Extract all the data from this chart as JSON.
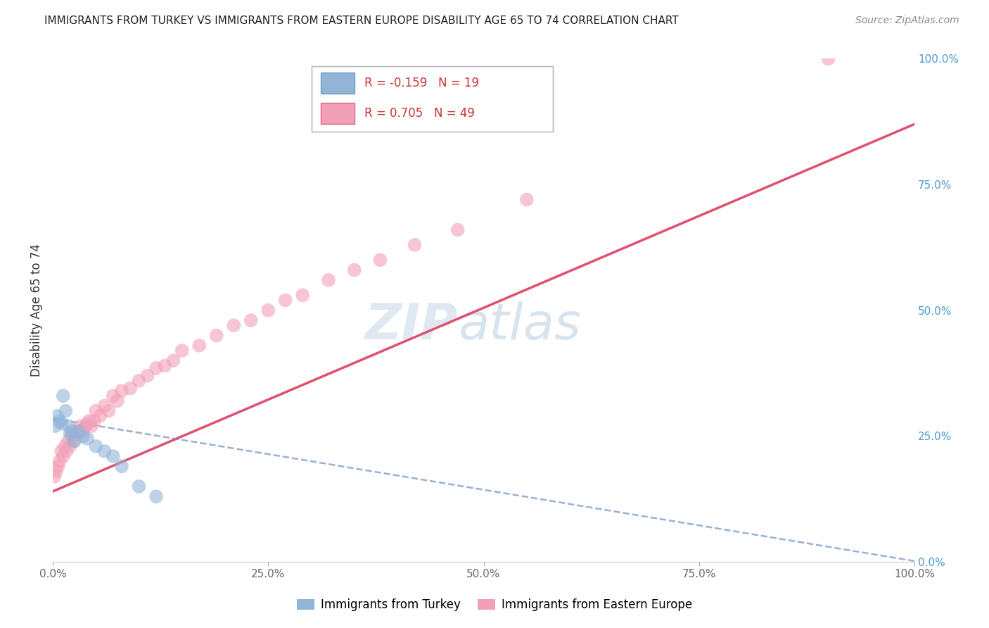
{
  "title": "IMMIGRANTS FROM TURKEY VS IMMIGRANTS FROM EASTERN EUROPE DISABILITY AGE 65 TO 74 CORRELATION CHART",
  "source": "Source: ZipAtlas.com",
  "ylabel": "Disability Age 65 to 74",
  "legend_turkey": "R = -0.159   N = 19",
  "legend_eastern": "R = 0.705   N = 49",
  "turkey_color": "#92b4d7",
  "eastern_color": "#f2a0b8",
  "turkey_line_color": "#7090c0",
  "eastern_line_color": "#e05070",
  "watermark_text": "ZIPatlas",
  "turkey_scatter_x": [
    0.3,
    0.5,
    0.8,
    1.0,
    1.2,
    1.5,
    1.8,
    2.0,
    2.2,
    2.5,
    3.0,
    3.5,
    4.0,
    5.0,
    6.0,
    7.0,
    8.0,
    10.0,
    12.0
  ],
  "turkey_scatter_y": [
    27.0,
    29.0,
    28.0,
    27.5,
    33.0,
    30.0,
    27.0,
    25.5,
    26.0,
    24.0,
    26.0,
    25.0,
    24.5,
    23.0,
    22.0,
    21.0,
    19.0,
    15.0,
    13.0
  ],
  "eastern_scatter_x": [
    0.2,
    0.4,
    0.6,
    0.8,
    1.0,
    1.2,
    1.4,
    1.6,
    1.8,
    2.0,
    2.2,
    2.5,
    2.8,
    3.0,
    3.2,
    3.5,
    3.8,
    4.0,
    4.2,
    4.5,
    4.8,
    5.0,
    5.5,
    6.0,
    6.5,
    7.0,
    7.5,
    8.0,
    9.0,
    10.0,
    11.0,
    12.0,
    13.0,
    14.0,
    15.0,
    17.0,
    19.0,
    21.0,
    23.0,
    25.0,
    27.0,
    29.0,
    32.0,
    35.0,
    38.0,
    42.0,
    47.0,
    55.0,
    90.0
  ],
  "eastern_scatter_y": [
    17.0,
    18.0,
    19.0,
    20.0,
    22.0,
    21.0,
    23.0,
    22.0,
    24.0,
    23.0,
    25.0,
    24.0,
    25.5,
    26.0,
    27.0,
    26.0,
    27.0,
    27.5,
    28.0,
    27.0,
    28.0,
    30.0,
    29.0,
    31.0,
    30.0,
    33.0,
    32.0,
    34.0,
    34.5,
    36.0,
    37.0,
    38.5,
    39.0,
    40.0,
    42.0,
    43.0,
    45.0,
    47.0,
    48.0,
    50.0,
    52.0,
    53.0,
    56.0,
    58.0,
    60.0,
    63.0,
    66.0,
    72.0,
    100.0
  ],
  "xlim": [
    0,
    100
  ],
  "ylim": [
    0,
    100
  ],
  "bg_color": "#ffffff",
  "grid_color": "#dddddd",
  "eastern_line_x0": 0,
  "eastern_line_y0": 14.0,
  "eastern_line_x1": 100,
  "eastern_line_y1": 87.0,
  "turkey_line_x0": 0,
  "turkey_line_y0": 28.5,
  "turkey_line_x1": 30,
  "turkey_line_y1": 20.0
}
